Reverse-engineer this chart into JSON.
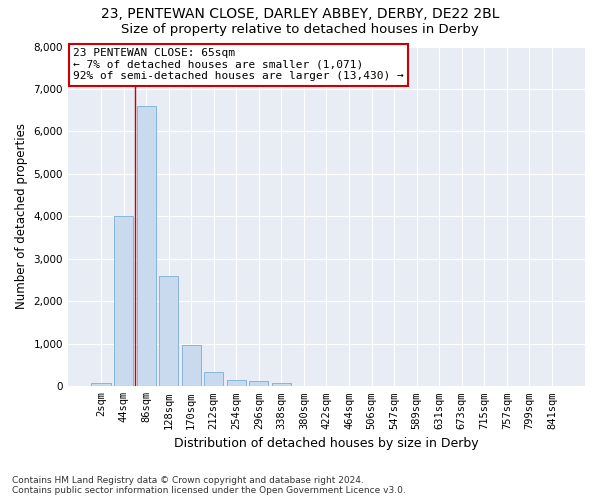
{
  "title": "23, PENTEWAN CLOSE, DARLEY ABBEY, DERBY, DE22 2BL",
  "subtitle": "Size of property relative to detached houses in Derby",
  "xlabel": "Distribution of detached houses by size in Derby",
  "ylabel": "Number of detached properties",
  "footnote": "Contains HM Land Registry data © Crown copyright and database right 2024.\nContains public sector information licensed under the Open Government Licence v3.0.",
  "categories": [
    "2sqm",
    "44sqm",
    "86sqm",
    "128sqm",
    "170sqm",
    "212sqm",
    "254sqm",
    "296sqm",
    "338sqm",
    "380sqm",
    "422sqm",
    "464sqm",
    "506sqm",
    "547sqm",
    "589sqm",
    "631sqm",
    "673sqm",
    "715sqm",
    "757sqm",
    "799sqm",
    "841sqm"
  ],
  "bar_values": [
    70,
    4000,
    6600,
    2600,
    970,
    340,
    140,
    120,
    80,
    0,
    0,
    0,
    0,
    0,
    0,
    0,
    0,
    0,
    0,
    0,
    0
  ],
  "bar_color": "#c9d9ee",
  "bar_edge_color": "#7aadd4",
  "background_color": "#e8edf5",
  "grid_color": "#ffffff",
  "property_line_x": 1.5,
  "annotation_text": "23 PENTEWAN CLOSE: 65sqm\n← 7% of detached houses are smaller (1,071)\n92% of semi-detached houses are larger (13,430) →",
  "annotation_box_color": "#ffffff",
  "annotation_box_edge_color": "#cc0000",
  "vline_color": "#cc0000",
  "ylim": [
    0,
    8000
  ],
  "yticks": [
    0,
    1000,
    2000,
    3000,
    4000,
    5000,
    6000,
    7000,
    8000
  ],
  "title_fontsize": 10,
  "subtitle_fontsize": 9.5,
  "xlabel_fontsize": 9,
  "ylabel_fontsize": 8.5,
  "tick_fontsize": 7.5,
  "annotation_fontsize": 8,
  "footnote_fontsize": 6.5
}
